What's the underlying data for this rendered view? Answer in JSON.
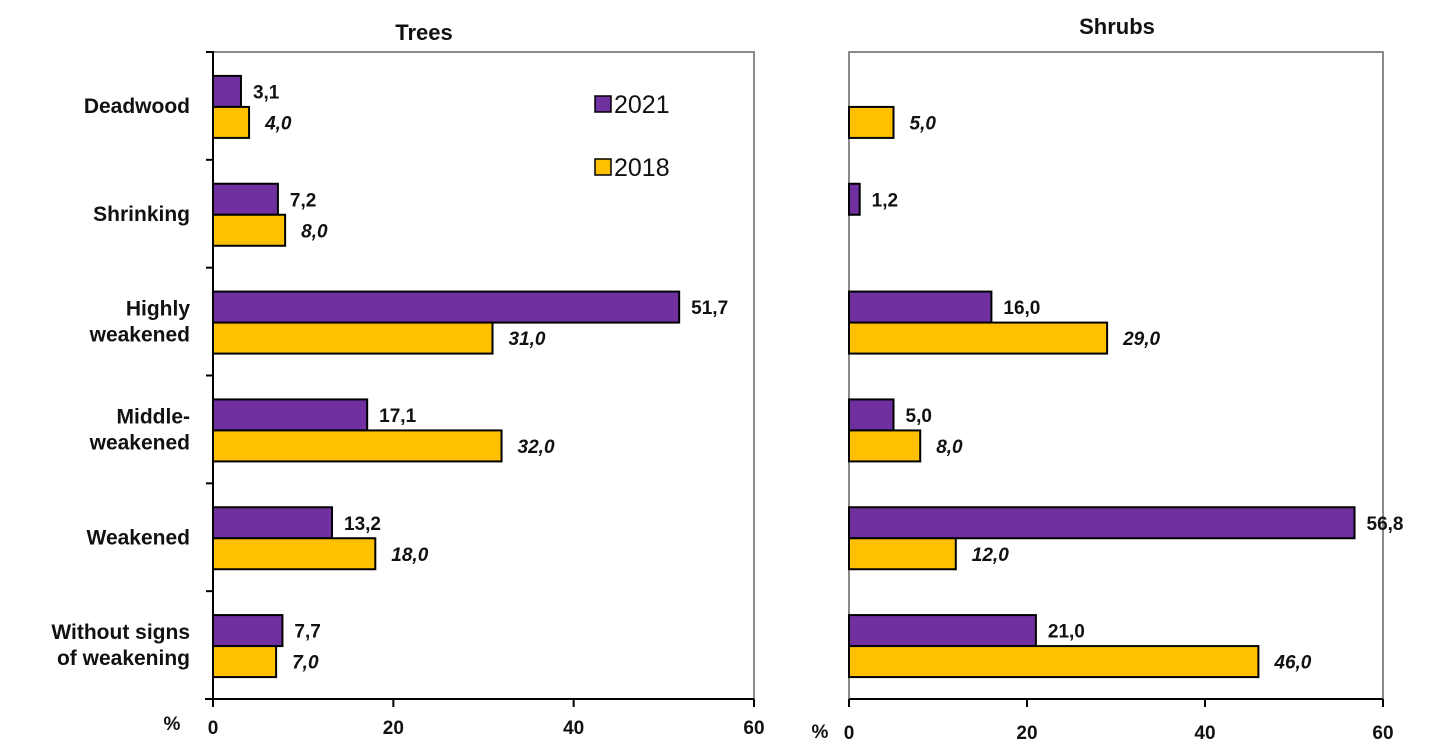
{
  "chart_data": [
    {
      "type": "bar",
      "orientation": "horizontal",
      "title": "Trees",
      "categories": [
        "Deadwood",
        "Shrinking",
        "Highly weakened",
        "Middle-weakened",
        "Weakened",
        "Without signs of weakening"
      ],
      "category_lines": [
        [
          "Deadwood"
        ],
        [
          "Shrinking"
        ],
        [
          "Highly",
          "weakened"
        ],
        [
          "Middle-",
          "weakened"
        ],
        [
          "Weakened"
        ],
        [
          "Without signs",
          "of weakening"
        ]
      ],
      "series": [
        {
          "name": "2021",
          "values": [
            3.1,
            7.2,
            51.7,
            17.1,
            13.2,
            7.7
          ],
          "labels": [
            "3,1",
            "7,2",
            "51,7",
            "17,1",
            "13,2",
            "7,7"
          ],
          "color": "#7030A0",
          "italic": false
        },
        {
          "name": "2018",
          "values": [
            4.0,
            8.0,
            31.0,
            32.0,
            18.0,
            7.0
          ],
          "labels": [
            "4,0",
            "8,0",
            "31,0",
            "32,0",
            "18,0",
            "7,0"
          ],
          "color": "#FFC000",
          "italic": true
        }
      ],
      "xlabel": "%",
      "xlim": [
        0,
        60
      ],
      "xticks": [
        0,
        20,
        40,
        60
      ],
      "xtick_labels": [
        "0",
        "20",
        "40",
        "60"
      ],
      "grid": false,
      "legend": {
        "placement": "top-right",
        "entries": [
          "2021",
          "2018"
        ]
      }
    },
    {
      "type": "bar",
      "orientation": "horizontal",
      "title": "Shrubs",
      "categories": [
        "Deadwood",
        "Shrinking",
        "Highly weakened",
        "Middle-weakened",
        "Weakened",
        "Without signs of weakening"
      ],
      "series": [
        {
          "name": "2021",
          "values": [
            null,
            1.2,
            16.0,
            5.0,
            56.8,
            21.0
          ],
          "labels": [
            "",
            "1,2",
            "16,0",
            "5,0",
            "56,8",
            "21,0"
          ],
          "color": "#7030A0",
          "italic": false
        },
        {
          "name": "2018",
          "values": [
            5.0,
            null,
            29.0,
            8.0,
            12.0,
            46.0
          ],
          "labels": [
            "5,0",
            "",
            "29,0",
            "8,0",
            "12,0",
            "46,0"
          ],
          "color": "#FFC000",
          "italic": true
        }
      ],
      "xlabel": "%",
      "xlim": [
        0,
        60
      ],
      "xticks": [
        0,
        20,
        40,
        60
      ],
      "xtick_labels": [
        "0",
        "20",
        "40",
        "60"
      ],
      "grid": false
    }
  ]
}
